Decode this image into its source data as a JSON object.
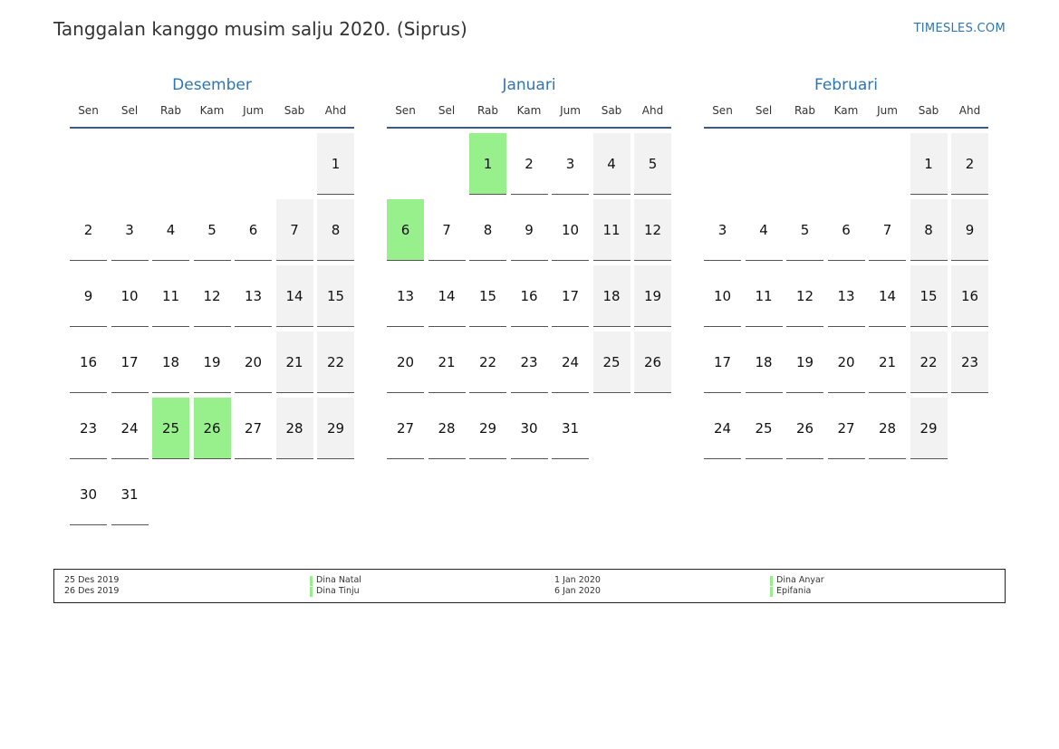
{
  "header": {
    "title": "Tanggalan kanggo musim salju 2020. (Siprus)",
    "site": "TIMESLES.COM"
  },
  "colors": {
    "accent": "#2e75b6",
    "holiday": "#98f08d",
    "weekend": "#f2f2f2"
  },
  "weekdays": [
    "Sen",
    "Sel",
    "Rab",
    "Kam",
    "Jum",
    "Sab",
    "Ahd"
  ],
  "months": [
    {
      "name": "Desember",
      "start_offset": 6,
      "days": 31,
      "holidays": [
        25,
        26
      ]
    },
    {
      "name": "Januari",
      "start_offset": 2,
      "days": 31,
      "holidays": [
        1,
        6
      ]
    },
    {
      "name": "Februari",
      "start_offset": 5,
      "days": 29,
      "holidays": []
    }
  ],
  "legend": {
    "left": [
      {
        "date": "25 Des 2019",
        "name": "Dina Natal"
      },
      {
        "date": "26 Des 2019",
        "name": "Dina Tinju"
      }
    ],
    "right": [
      {
        "date": "1 Jan 2020",
        "name": "Dina Anyar"
      },
      {
        "date": "6 Jan 2020",
        "name": "Epifania"
      }
    ]
  }
}
